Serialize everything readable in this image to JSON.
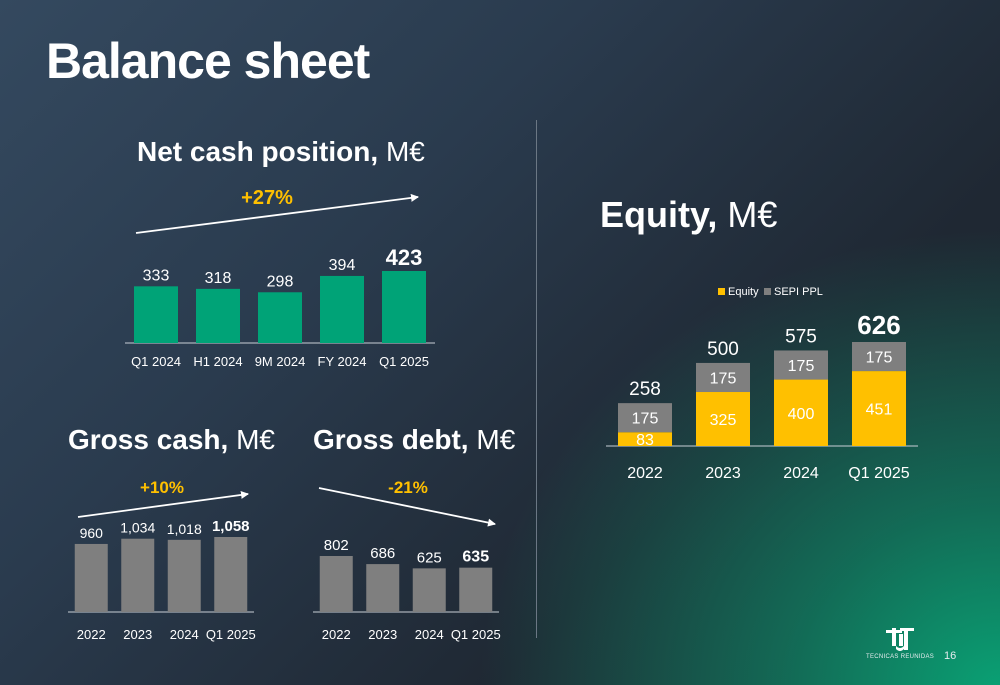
{
  "slide": {
    "title": "Balance sheet",
    "page_number": "16",
    "logo_text": "TECNICAS REUNIDAS"
  },
  "net_cash": {
    "title_bold": "Net cash position,",
    "title_unit": "M€",
    "growth": "+27%"
  },
  "gross_cash": {
    "title_bold": "Gross cash,",
    "title_unit": "M€",
    "growth": "+10%"
  },
  "gross_debt": {
    "title_bold": "Gross debt,",
    "title_unit": "M€",
    "growth": "-21%"
  },
  "equity": {
    "title_bold": "Equity,",
    "title_unit": "M€"
  },
  "colors": {
    "green": "#00a377",
    "gray": "#7f7f7f",
    "yellow": "#ffc000",
    "growth_text": "#ffc000"
  },
  "chart_data": [
    {
      "id": "net_cash",
      "type": "bar",
      "categories": [
        "Q1 2024",
        "H1 2024",
        "9M 2024",
        "FY 2024",
        "Q1 2025"
      ],
      "values": [
        333,
        318,
        298,
        394,
        423
      ],
      "labels": [
        "333",
        "318",
        "298",
        "394",
        "423"
      ],
      "highlight_last": true
    },
    {
      "id": "gross_cash",
      "type": "bar",
      "categories": [
        "2022",
        "2023",
        "2024",
        "Q1 2025"
      ],
      "values": [
        960,
        1034,
        1018,
        1058
      ],
      "labels": [
        "960",
        "1,034",
        "1,018",
        "1,058"
      ],
      "highlight_last": true
    },
    {
      "id": "gross_debt",
      "type": "bar",
      "categories": [
        "2022",
        "2023",
        "2024",
        "Q1 2025"
      ],
      "values": [
        802,
        686,
        625,
        635
      ],
      "labels": [
        "802",
        "686",
        "625",
        "635"
      ],
      "highlight_last": true
    },
    {
      "id": "equity",
      "type": "bar",
      "stacked": true,
      "categories": [
        "2022",
        "2023",
        "2024",
        "Q1 2025"
      ],
      "series": [
        {
          "name": "Equity",
          "values": [
            83,
            325,
            400,
            451
          ]
        },
        {
          "name": "SEPI PPL",
          "values": [
            175,
            175,
            175,
            175
          ]
        }
      ],
      "totals": [
        258,
        500,
        575,
        626
      ],
      "legend_position": "top"
    }
  ]
}
